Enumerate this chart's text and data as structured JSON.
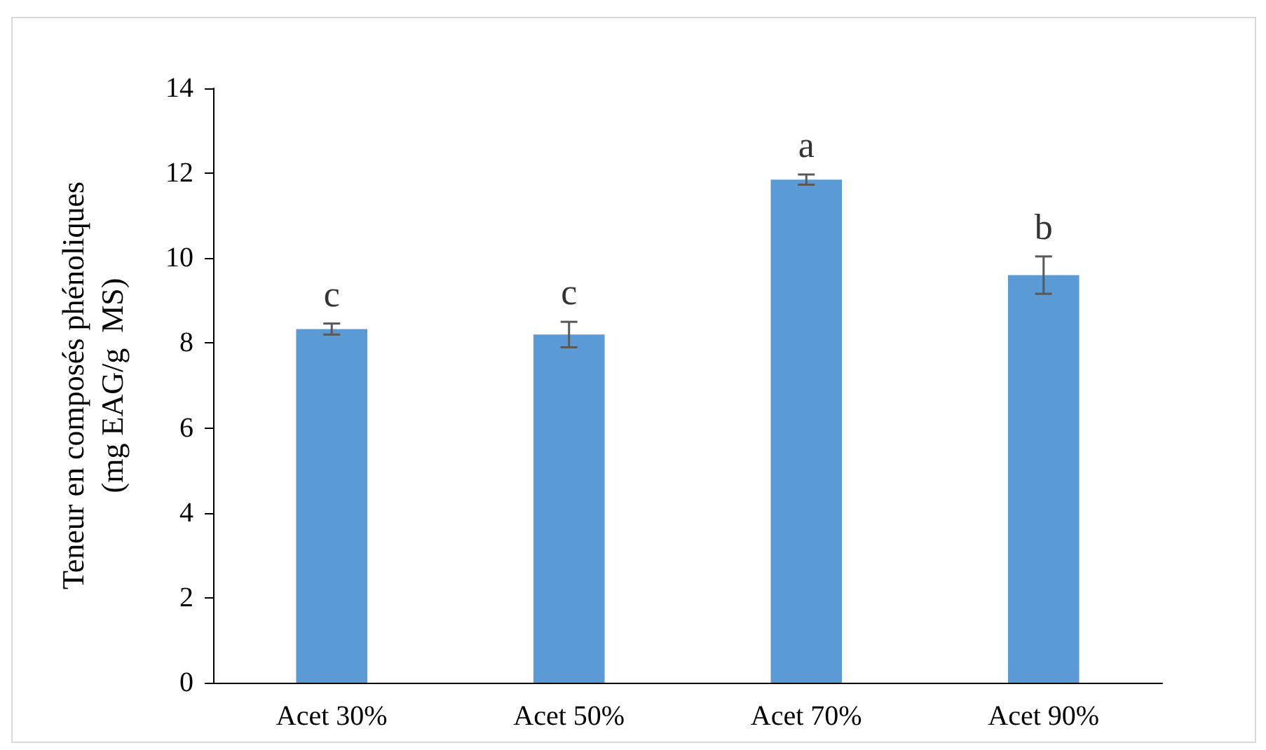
{
  "chart_data": {
    "type": "bar",
    "ylabel": "Teneur en composés phénoliques\n(mg EAG/g  MS)",
    "categories": [
      "Acet 30%",
      "Acet 50%",
      "Acet 70%",
      "Acet 90%"
    ],
    "values": [
      8.33,
      8.2,
      11.85,
      9.6
    ],
    "errors": [
      0.13,
      0.3,
      0.12,
      0.44
    ],
    "color": "#5b9bd5",
    "ylim": [
      0,
      14
    ],
    "yticks": [
      0,
      2,
      4,
      6,
      8,
      10,
      12,
      14
    ],
    "grid": false,
    "annotations": [
      {
        "text": "c",
        "x": "Acet 30%",
        "y": 8.46
      },
      {
        "text": "c",
        "x": "Acet 50%",
        "y": 8.5
      },
      {
        "text": "a",
        "x": "Acet 70%",
        "y": 11.97
      },
      {
        "text": "b",
        "x": "Acet 90%",
        "y": 10.04
      }
    ]
  }
}
